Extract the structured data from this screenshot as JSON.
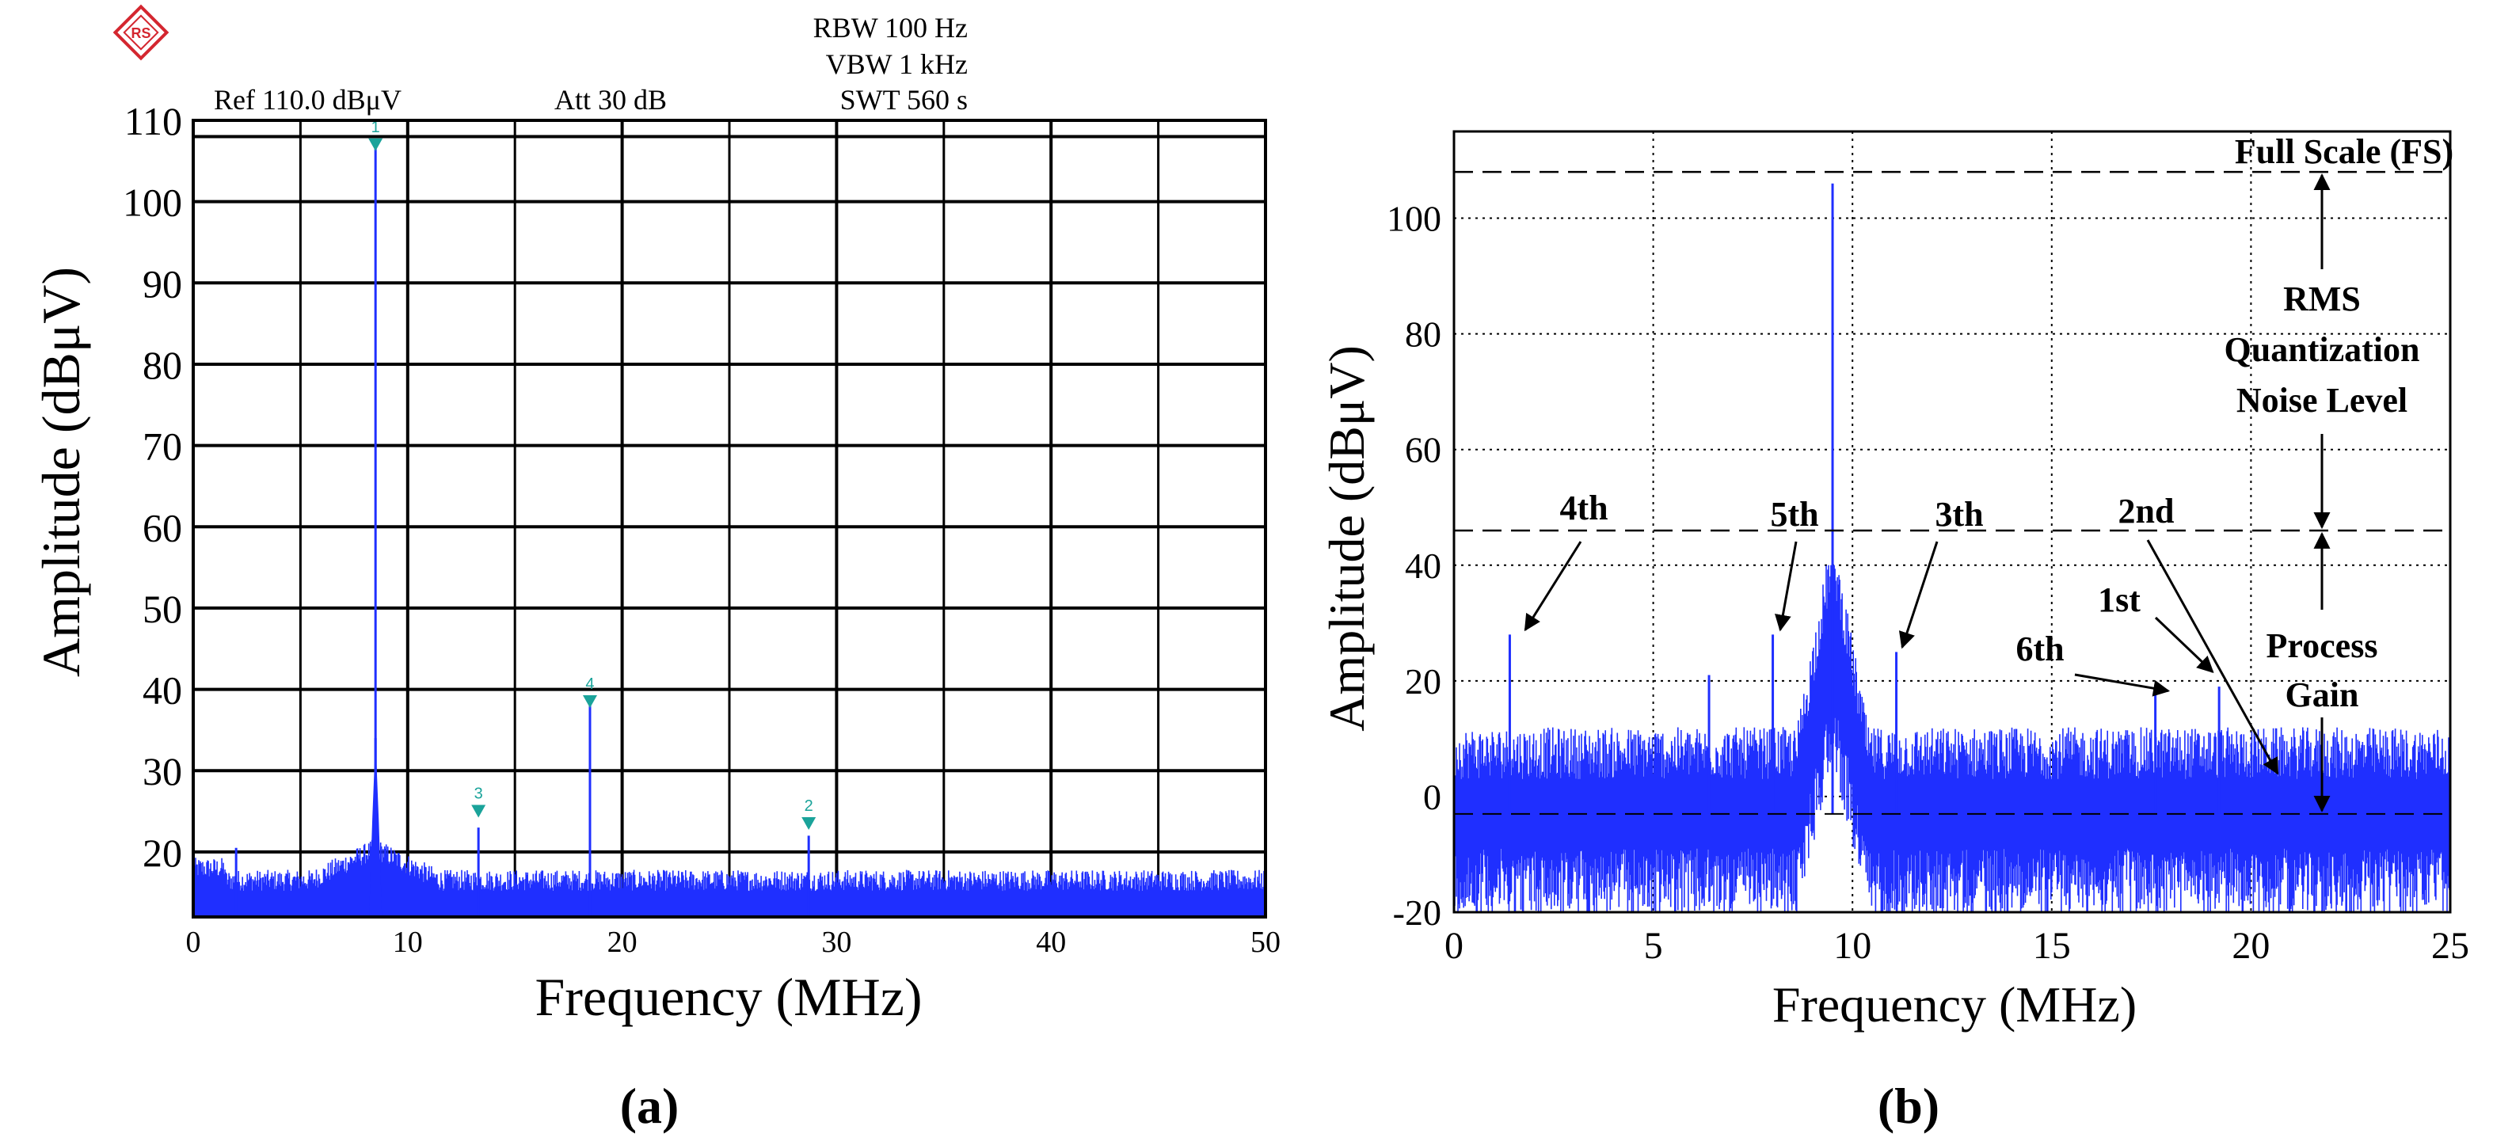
{
  "colors": {
    "trace": "#1f2fff",
    "marker": "#1aa39a",
    "logo": "#d4262f",
    "grid": "#000000",
    "annotation": "#000000"
  },
  "logo": {
    "icon": "rohde-schwarz-logo-icon",
    "text": "RS"
  },
  "chart_data": [
    {
      "id": "a",
      "type": "line",
      "panel_label": "(a)",
      "instrument_header": {
        "rbw": "RBW 100 Hz",
        "vbw": "VBW 1  kHz",
        "swt": "SWT 560 s",
        "ref": "Ref 110.0 dBμV",
        "att": "Att 30 dB"
      },
      "xlabel": "Frequency (MHz)",
      "ylabel": "Amplitude (dBμV)",
      "xlim": [
        0,
        50
      ],
      "ylim": [
        12,
        110
      ],
      "xticks": [
        0,
        10,
        20,
        30,
        40,
        50
      ],
      "yticks": [
        20,
        30,
        40,
        50,
        60,
        70,
        80,
        90,
        100,
        110
      ],
      "grid": true,
      "noise_floor_dbuv": 16.5,
      "series": [
        {
          "name": "spectrum",
          "peaks": [
            {
              "x": 8.5,
              "y": 107
            },
            {
              "x": 8.5,
              "y": 34
            },
            {
              "x": 13.3,
              "y": 23
            },
            {
              "x": 18.5,
              "y": 38
            },
            {
              "x": 28.7,
              "y": 22
            },
            {
              "x": 2.0,
              "y": 20.5
            }
          ]
        }
      ],
      "markers": [
        {
          "label": "1",
          "x": 8.5,
          "y": 107
        },
        {
          "label": "3",
          "x": 13.3,
          "y": 25
        },
        {
          "label": "4",
          "x": 18.5,
          "y": 38.5
        },
        {
          "label": "2",
          "x": 28.7,
          "y": 23.5
        }
      ]
    },
    {
      "id": "b",
      "type": "line",
      "panel_label": "(b)",
      "xlabel": "Frequency (MHz)",
      "ylabel": "Amplitude (dBμV)",
      "xlim": [
        0,
        25
      ],
      "ylim": [
        -20,
        115
      ],
      "xticks": [
        0,
        5,
        10,
        15,
        20,
        25
      ],
      "yticks": [
        -20,
        0,
        20,
        40,
        60,
        80,
        100
      ],
      "grid": true,
      "reference_levels": {
        "full_scale": 108,
        "quantization_noise": 46,
        "noise_floor_mean": -3
      },
      "series": [
        {
          "name": "spectrum",
          "peaks": [
            {
              "x": 9.5,
              "y": 106
            },
            {
              "x": 1.4,
              "y": 28
            },
            {
              "x": 8.0,
              "y": 28
            },
            {
              "x": 11.1,
              "y": 25
            },
            {
              "x": 17.6,
              "y": 18
            },
            {
              "x": 19.2,
              "y": 19
            },
            {
              "x": 6.4,
              "y": 21
            }
          ]
        }
      ],
      "annotations": {
        "full_scale": "Full Scale (FS)",
        "rms_line1": "RMS",
        "rms_line2": "Quantization",
        "rms_line3": "Noise Level",
        "process_line1": "Process",
        "process_line2": "Gain",
        "h4": "4th",
        "h5": "5th",
        "h3": "3th",
        "h2": "2nd",
        "h1": "1st",
        "h6": "6th"
      }
    }
  ]
}
